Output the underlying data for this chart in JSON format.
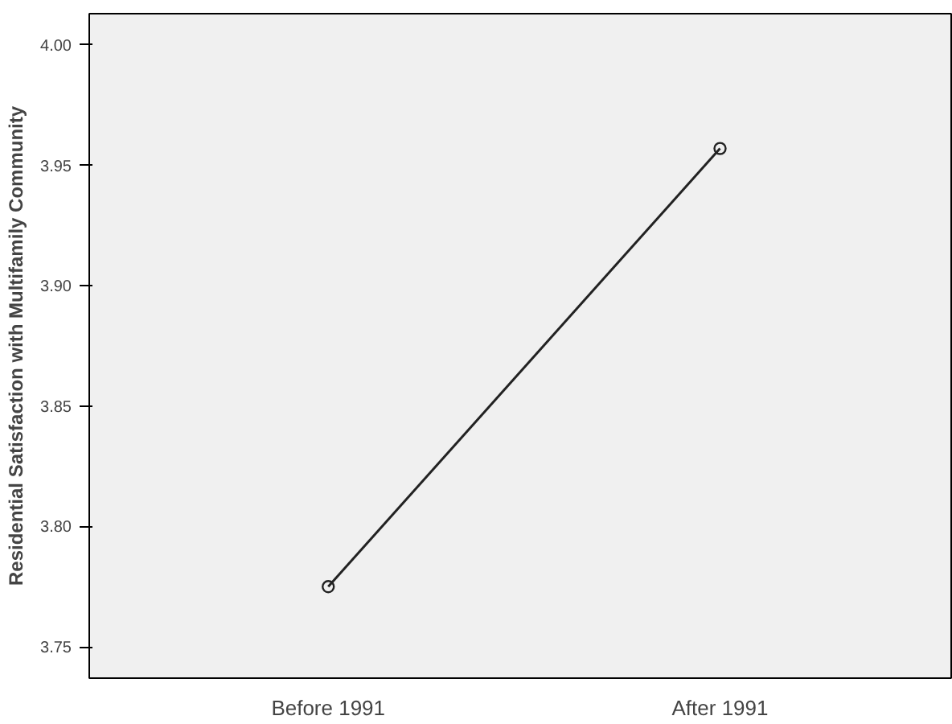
{
  "chart_data": {
    "type": "line",
    "ylabel": "Residential Satisfaction with Multifamily Community",
    "categories": [
      "Before 1991",
      "After 1991"
    ],
    "series": [
      {
        "color": "#222222",
        "values": [
          3.775,
          3.957
        ]
      }
    ],
    "ylim": [
      3.737,
      4.013
    ],
    "yticks": [
      {
        "value": 3.75,
        "label": "3.75"
      },
      {
        "value": 3.8,
        "label": "3.80"
      },
      {
        "value": 3.85,
        "label": "3.85"
      },
      {
        "value": 3.9,
        "label": "3.90"
      },
      {
        "value": 3.95,
        "label": "3.95"
      },
      {
        "value": 4.0,
        "label": "4.00"
      }
    ],
    "grid": false,
    "marker": "circle",
    "line_style": "solid"
  }
}
